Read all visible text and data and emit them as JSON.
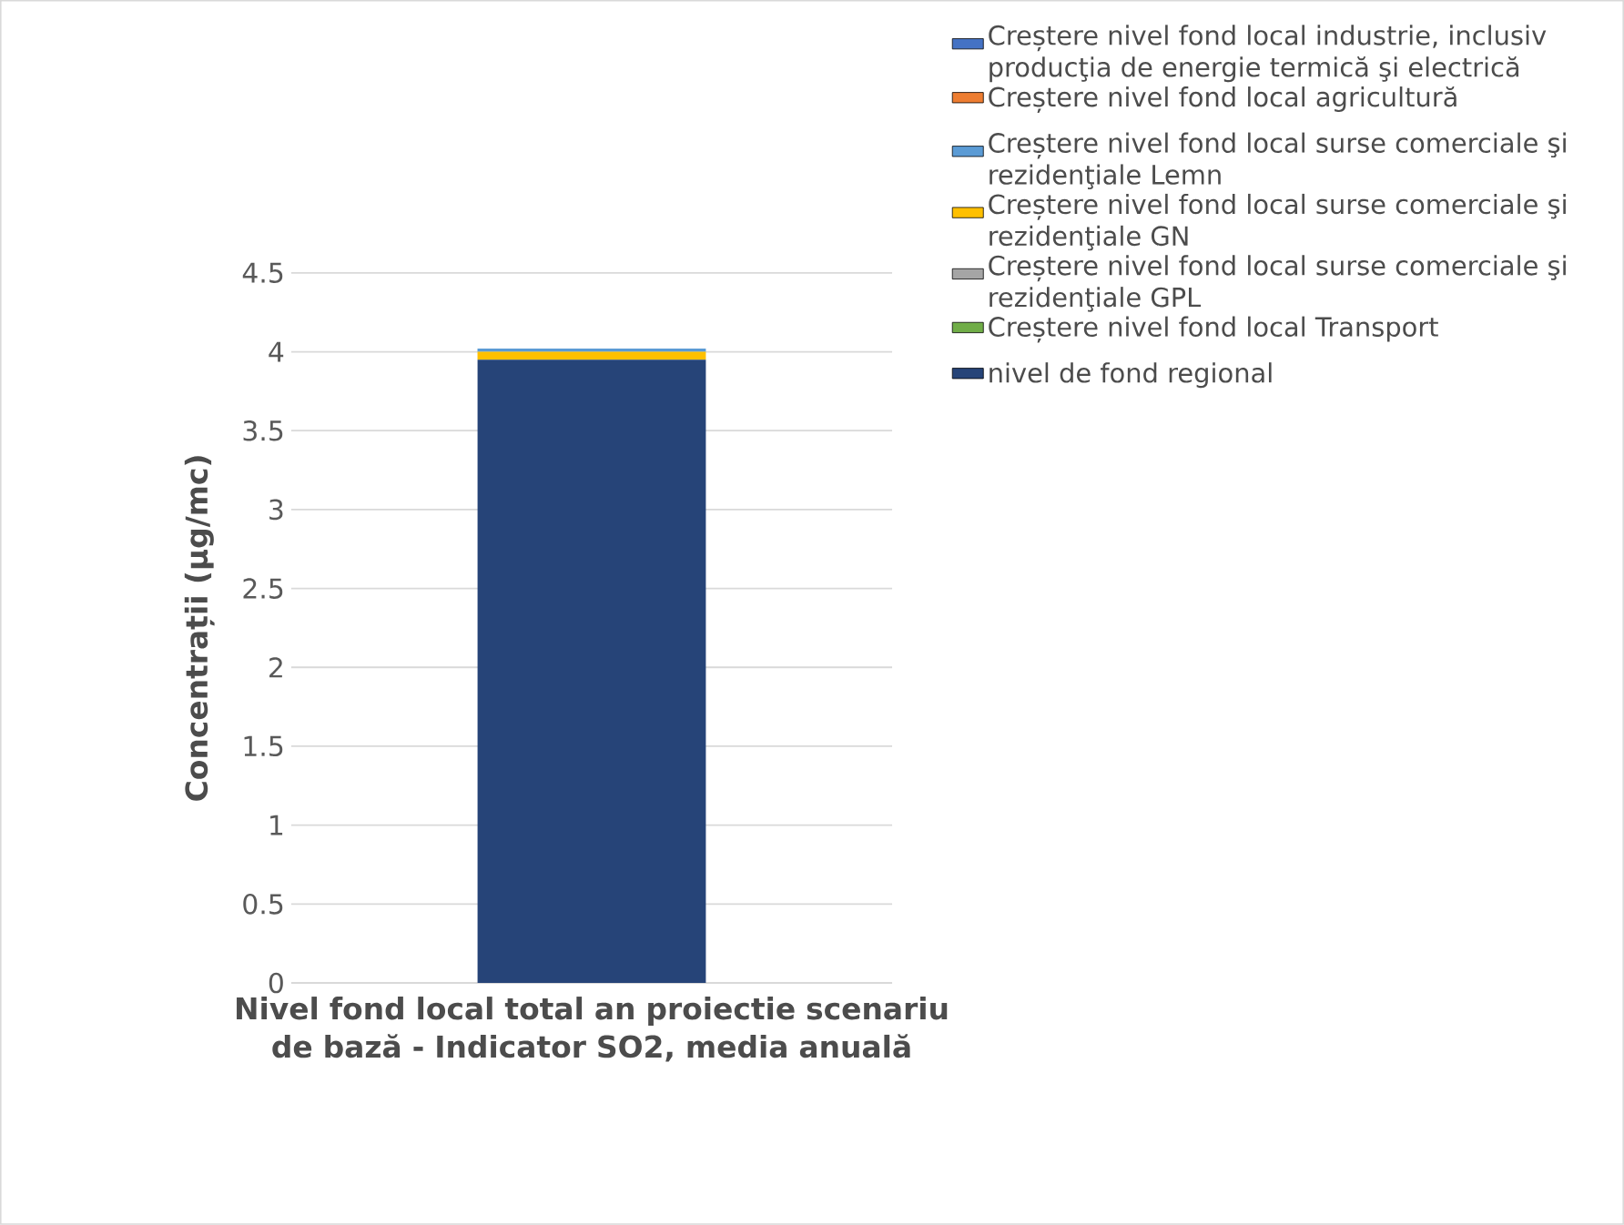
{
  "chart_data": {
    "type": "bar",
    "stacked": true,
    "xlabel": "Nivel fond local total an proiectie scenariu de bază - Indicator SO2, media anuală",
    "ylabel": "Concentrații (µg/mc)",
    "categories": [
      null
    ],
    "series": [
      {
        "name": "nivel de fond regional",
        "color": "#264478",
        "values": [
          3.95
        ]
      },
      {
        "name": "Creștere nivel fond local Transport",
        "color": "#70ad47",
        "values": [
          0
        ]
      },
      {
        "name": "Creștere nivel fond local surse comerciale şi rezidenţiale GPL",
        "color": "#a5a5a5",
        "values": [
          0
        ]
      },
      {
        "name": "Creștere nivel fond local surse comerciale şi rezidenţiale GN",
        "color": "#ffc000",
        "values": [
          0.05
        ]
      },
      {
        "name": "Creștere nivel fond local surse comerciale şi rezidenţiale Lemn",
        "color": "#5b9bd5",
        "values": [
          0.02
        ]
      },
      {
        "name": "Creștere nivel fond local agricultură",
        "color": "#ed7d31",
        "values": [
          0
        ]
      },
      {
        "name": "Creștere nivel fond local industrie, inclusiv producţia de energie termică şi electrică",
        "color": "#4472c4",
        "values": [
          0
        ]
      }
    ],
    "ylim": [
      0,
      4.5
    ],
    "yticks": [
      0,
      0.5,
      1,
      1.5,
      2,
      2.5,
      3,
      3.5,
      4,
      4.5
    ],
    "grid": "y",
    "legend": "right"
  }
}
